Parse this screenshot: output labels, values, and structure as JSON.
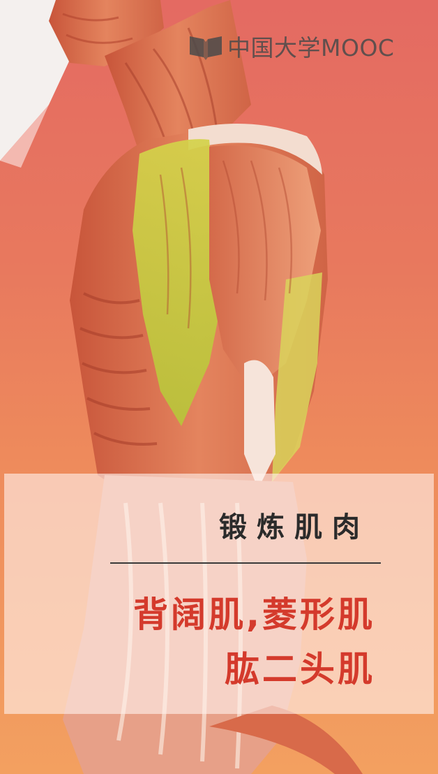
{
  "brand": {
    "name": "中国大学MOOC",
    "logo_icon": "open-book-logo-icon"
  },
  "illustration": {
    "subject": "anatomical-muscle-figure",
    "highlight_color": "#cfd64a",
    "muscle_color": "#dc6a48"
  },
  "caption": {
    "title": "锻炼肌肉",
    "muscles_line1": "背阔肌,菱形肌",
    "muscles_line2": "肱二头肌"
  },
  "colors": {
    "background_top": "#e46a62",
    "background_bottom": "#f3a060",
    "accent_text": "#d43a2c"
  }
}
